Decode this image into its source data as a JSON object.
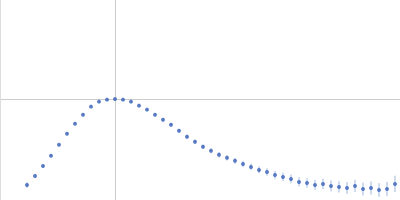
{
  "chart_data": {
    "type": "scatter",
    "color": "#3a62b8",
    "marker": "circle",
    "x": [
      0.405,
      0.525,
      0.645,
      0.765,
      0.885,
      1.005,
      1.125,
      1.245,
      1.365,
      1.485,
      1.605,
      1.725,
      1.845,
      1.965,
      2.085,
      2.205,
      2.325,
      2.445,
      2.565,
      2.685,
      2.805,
      2.925,
      3.045,
      3.165,
      3.285,
      3.405,
      3.525,
      3.645,
      3.765,
      3.885,
      4.005,
      4.125,
      4.245,
      4.365,
      4.485,
      4.605,
      4.725,
      4.845,
      4.965,
      5.085,
      5.205,
      5.325,
      5.445,
      5.565,
      5.685,
      5.805,
      5.925
    ],
    "values": [
      0.166,
      0.265,
      0.375,
      0.486,
      0.607,
      0.729,
      0.839,
      0.938,
      1.027,
      1.082,
      1.104,
      1.11,
      1.104,
      1.082,
      1.038,
      0.994,
      0.938,
      0.883,
      0.828,
      0.762,
      0.696,
      0.64,
      0.585,
      0.541,
      0.497,
      0.464,
      0.431,
      0.397,
      0.364,
      0.331,
      0.309,
      0.276,
      0.254,
      0.232,
      0.199,
      0.188,
      0.166,
      0.177,
      0.155,
      0.144,
      0.132,
      0.155,
      0.121,
      0.132,
      0.11,
      0.121,
      0.177
    ],
    "errors": [
      0.03,
      0.02,
      0.015,
      0.012,
      0.01,
      0.01,
      0.01,
      0.01,
      0.01,
      0.01,
      0.01,
      0.01,
      0.012,
      0.012,
      0.014,
      0.015,
      0.016,
      0.018,
      0.02,
      0.02,
      0.022,
      0.024,
      0.025,
      0.027,
      0.03,
      0.03,
      0.032,
      0.034,
      0.036,
      0.038,
      0.04,
      0.042,
      0.045,
      0.048,
      0.05,
      0.052,
      0.055,
      0.058,
      0.06,
      0.062,
      0.065,
      0.068,
      0.07,
      0.072,
      0.075,
      0.078,
      0.09
    ],
    "xlim": [
      0,
      6
    ],
    "xticks": [
      1.732
    ],
    "ylim": [
      0,
      2.2
    ],
    "yticks": [
      1.104
    ],
    "grid": true,
    "tick_labels": false
  }
}
